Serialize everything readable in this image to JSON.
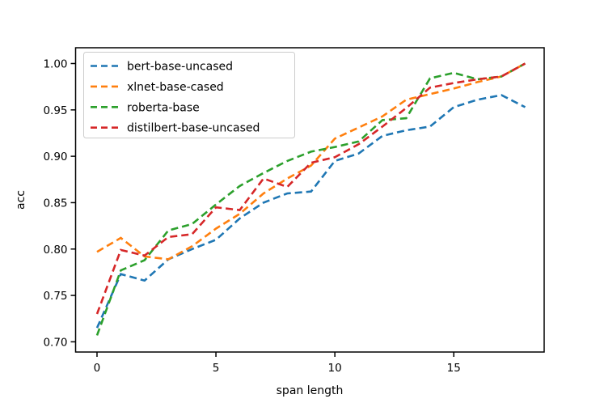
{
  "chart_data": {
    "type": "line",
    "title": "",
    "xlabel": "span length",
    "ylabel": "acc",
    "x": [
      0,
      1,
      2,
      3,
      4,
      5,
      6,
      7,
      8,
      9,
      10,
      11,
      12,
      13,
      14,
      15,
      16,
      17,
      18
    ],
    "xlim": [
      -0.9,
      18.8
    ],
    "ylim": [
      0.689,
      1.017
    ],
    "xticks": [
      0,
      5,
      10,
      15
    ],
    "xtick_labels": [
      "0",
      "5",
      "10",
      "15"
    ],
    "yticks": [
      0.7,
      0.75,
      0.8,
      0.85,
      0.9,
      0.95,
      1.0
    ],
    "ytick_labels": [
      "0.70",
      "0.75",
      "0.80",
      "0.85",
      "0.90",
      "0.95",
      "1.00"
    ],
    "grid": false,
    "line_style": "dashed",
    "legend_position": "upper left",
    "series": [
      {
        "name": "bert-base-uncased",
        "color": "#1f77b4",
        "values": [
          0.715,
          0.773,
          0.766,
          0.789,
          0.8,
          0.81,
          0.833,
          0.85,
          0.86,
          0.862,
          0.895,
          0.903,
          0.922,
          0.928,
          0.932,
          0.953,
          0.961,
          0.966,
          0.953
        ]
      },
      {
        "name": "xlnet-base-cased",
        "color": "#ff7f0e",
        "values": [
          0.797,
          0.812,
          0.792,
          0.789,
          0.803,
          0.822,
          0.838,
          0.86,
          0.876,
          0.89,
          0.919,
          0.931,
          0.943,
          0.961,
          0.967,
          0.973,
          0.98,
          0.986,
          1.0
        ]
      },
      {
        "name": "roberta-base",
        "color": "#2ca02c",
        "values": [
          0.707,
          0.777,
          0.788,
          0.82,
          0.827,
          0.848,
          0.868,
          0.882,
          0.895,
          0.905,
          0.91,
          0.916,
          0.939,
          0.941,
          0.984,
          0.99,
          0.983,
          0.986,
          1.0
        ]
      },
      {
        "name": "distilbert-base-uncased",
        "color": "#d62728",
        "values": [
          0.73,
          0.799,
          0.793,
          0.813,
          0.816,
          0.845,
          0.842,
          0.876,
          0.867,
          0.893,
          0.899,
          0.913,
          0.932,
          0.952,
          0.974,
          0.979,
          0.983,
          0.986,
          1.0
        ]
      }
    ]
  }
}
